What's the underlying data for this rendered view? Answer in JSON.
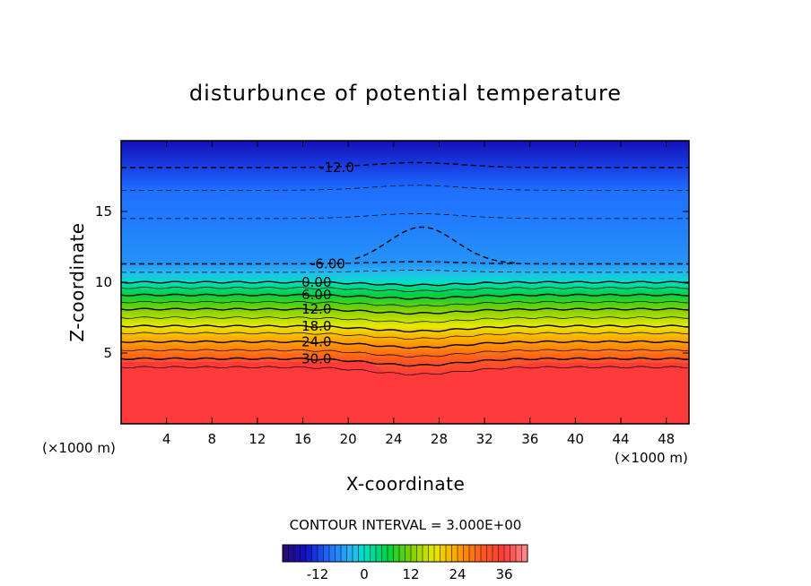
{
  "chart_data": {
    "type": "heatmap",
    "subtype": "filled-contour",
    "title": "disturbunce of potential temperature",
    "xlabel": "X-coordinate",
    "ylabel": "Z-coordinate",
    "x_unit_label": "(×1000 m)",
    "x_unit_label_left": "(×1000 m)",
    "xlim": [
      0,
      50
    ],
    "ylim": [
      0,
      20
    ],
    "x_ticks": [
      "4",
      "8",
      "12",
      "16",
      "20",
      "24",
      "28",
      "32",
      "36",
      "40",
      "44",
      "48"
    ],
    "x_tick_values": [
      4,
      8,
      12,
      16,
      20,
      24,
      28,
      32,
      36,
      40,
      44,
      48
    ],
    "y_ticks": [
      "5",
      "10",
      "15"
    ],
    "y_tick_values": [
      5,
      10,
      15
    ],
    "contour_interval_text": "CONTOUR INTERVAL = 3.000E+00",
    "contour_interval": 3,
    "contour_labels": [
      {
        "text": "-12.0",
        "value": -12,
        "x": 19.0,
        "z": 18.1,
        "style": "dashed"
      },
      {
        "text": "-6.00",
        "value": -6,
        "x": 18.2,
        "z": 11.3,
        "style": "dashed"
      },
      {
        "text": "0.00",
        "value": 0,
        "x": 17.2,
        "z": 10.0,
        "style": "solid"
      },
      {
        "text": "6.00",
        "value": 6,
        "x": 17.2,
        "z": 9.1,
        "style": "solid"
      },
      {
        "text": "12.0",
        "value": 12,
        "x": 17.2,
        "z": 8.1,
        "style": "solid"
      },
      {
        "text": "18.0",
        "value": 18,
        "x": 17.2,
        "z": 6.9,
        "style": "solid"
      },
      {
        "text": "24.0",
        "value": 24,
        "x": 17.2,
        "z": 5.8,
        "style": "solid"
      },
      {
        "text": "30.0",
        "value": 30,
        "x": 17.2,
        "z": 4.6,
        "style": "solid"
      }
    ],
    "vertical_profile": [
      {
        "z": 0,
        "value": 36
      },
      {
        "z": 3.5,
        "value": 36
      },
      {
        "z": 4.0,
        "value": 33
      },
      {
        "z": 4.6,
        "value": 30
      },
      {
        "z": 5.2,
        "value": 27
      },
      {
        "z": 5.8,
        "value": 24
      },
      {
        "z": 6.4,
        "value": 21
      },
      {
        "z": 6.9,
        "value": 18
      },
      {
        "z": 7.5,
        "value": 15
      },
      {
        "z": 8.1,
        "value": 12
      },
      {
        "z": 8.6,
        "value": 9
      },
      {
        "z": 9.1,
        "value": 6
      },
      {
        "z": 9.6,
        "value": 3
      },
      {
        "z": 10.0,
        "value": 0
      },
      {
        "z": 10.7,
        "value": -3
      },
      {
        "z": 11.3,
        "value": -6
      },
      {
        "z": 14.5,
        "value": -8
      },
      {
        "z": 16.5,
        "value": -9
      },
      {
        "z": 18.1,
        "value": -12
      },
      {
        "z": 20,
        "value": -16
      }
    ],
    "colorbar": {
      "ticks": [
        "-12",
        "0",
        "12",
        "24",
        "36"
      ],
      "tick_values": [
        -12,
        0,
        12,
        24,
        36
      ],
      "range": [
        -21,
        42
      ]
    },
    "grid": false,
    "legend": "colorbar-bottom"
  }
}
